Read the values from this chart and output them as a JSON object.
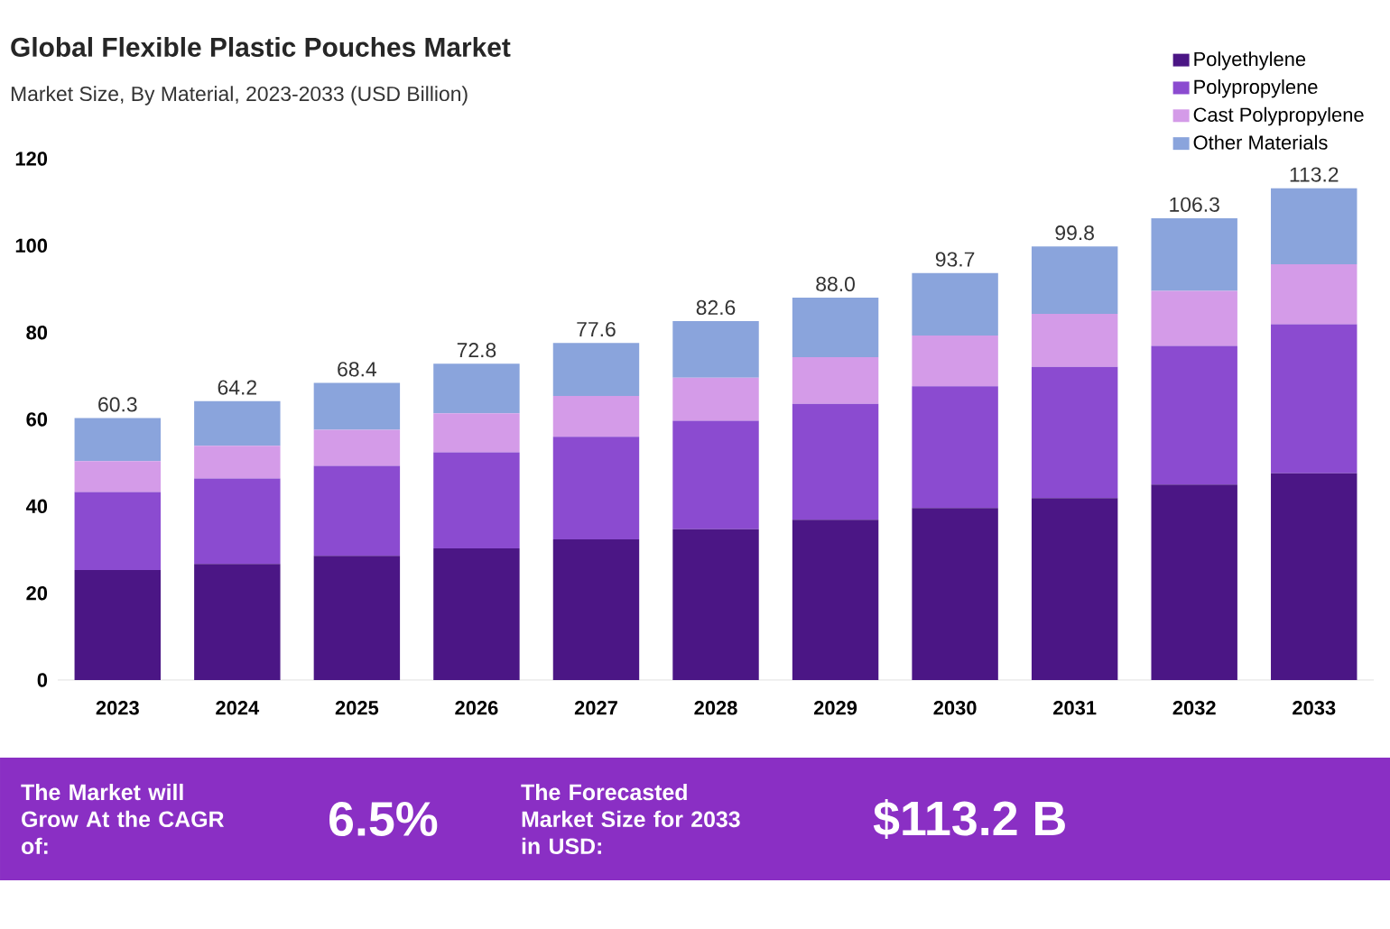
{
  "chart_data": {
    "type": "bar",
    "stacked": true,
    "title": "Global Flexible Plastic Pouches Market",
    "subtitle": "Market Size, By Material, 2023-2033 (USD Billion)",
    "categories": [
      "2023",
      "2024",
      "2025",
      "2026",
      "2027",
      "2028",
      "2029",
      "2030",
      "2031",
      "2032",
      "2033"
    ],
    "series": [
      {
        "name": "Polyethylene",
        "color": "#4b1685",
        "values": [
          25.3,
          26.7,
          28.6,
          30.3,
          32.4,
          34.7,
          36.9,
          39.6,
          41.9,
          45.0,
          47.6
        ]
      },
      {
        "name": "Polypropylene",
        "color": "#8b4bd0",
        "values": [
          18.0,
          19.7,
          20.7,
          22.1,
          23.6,
          25.0,
          26.7,
          28.0,
          30.2,
          31.9,
          34.3
        ]
      },
      {
        "name": "Cast Polypropylene",
        "color": "#d49be8",
        "values": [
          7.1,
          7.5,
          8.3,
          9.0,
          9.4,
          9.9,
          10.7,
          11.7,
          12.2,
          12.7,
          13.8
        ]
      },
      {
        "name": "Other Materials",
        "color": "#8aa4dc",
        "values": [
          9.9,
          10.3,
          10.8,
          11.4,
          12.2,
          13.0,
          13.7,
          14.4,
          15.5,
          16.7,
          17.5
        ]
      }
    ],
    "totals": [
      "60.3",
      "64.2",
      "68.4",
      "72.8",
      "77.6",
      "82.6",
      "88.0",
      "93.7",
      "99.8",
      "106.3",
      "113.2"
    ],
    "ylim": [
      0,
      120
    ],
    "yticks": [
      0,
      20,
      40,
      60,
      80,
      100,
      120
    ],
    "grid": false,
    "legend": "top right",
    "annotations": [
      "The Market will Grow At the CAGR of:",
      "6.5%",
      "The Forecasted Market Size for 2033 in USD:",
      "$113.2 B"
    ]
  }
}
